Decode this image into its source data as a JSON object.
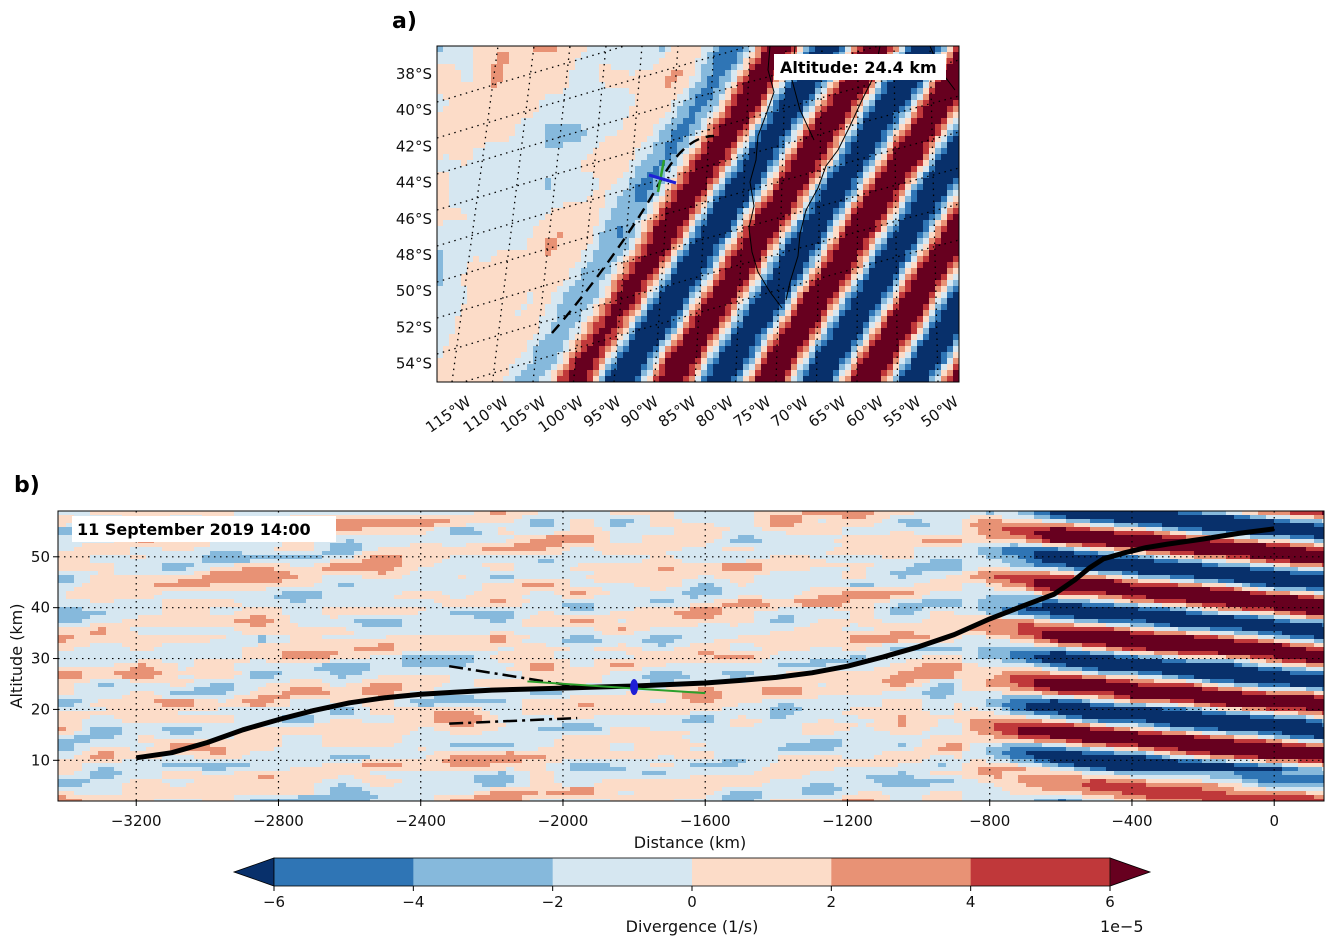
{
  "panels": {
    "a": {
      "label": "a)"
    },
    "b": {
      "label": "b)"
    }
  },
  "chart_data": [
    {
      "type": "heatmap",
      "panel": "a",
      "annotation": "Altitude: 24.4 km",
      "y_ticks": [
        "38°S",
        "40°S",
        "42°S",
        "44°S",
        "46°S",
        "48°S",
        "50°S",
        "52°S",
        "54°S"
      ],
      "x_ticks": [
        "115°W",
        "110°W",
        "105°W",
        "100°W",
        "95°W",
        "90°W",
        "85°W",
        "80°W",
        "75°W",
        "70°W",
        "65°W",
        "60°W",
        "55°W",
        "50°W"
      ],
      "lat_range": [
        -55,
        -37
      ],
      "lon_range": [
        -120,
        -48
      ],
      "features": [
        "flight track (dashed black)",
        "balloon position marker (blue/green cross) near 44°S 87°W",
        "coastline of South America"
      ],
      "grid": true
    },
    {
      "type": "heatmap",
      "panel": "b",
      "annotation": "11 September 2019 14:00",
      "xlabel": "Distance (km)",
      "ylabel": "Altitude (km)",
      "x_ticks": [
        -3200,
        -2800,
        -2400,
        -2000,
        -1600,
        -1200,
        -800,
        -400,
        0
      ],
      "y_ticks": [
        10,
        20,
        30,
        40,
        50
      ],
      "xlim": [
        -3420,
        140
      ],
      "ylim": [
        2,
        59
      ],
      "grid": true,
      "track": {
        "x": [
          -3200,
          -3100,
          -3000,
          -2900,
          -2800,
          -2700,
          -2600,
          -2500,
          -2400,
          -2300,
          -2200,
          -2100,
          -2000,
          -1900,
          -1800,
          -1700,
          -1600,
          -1500,
          -1400,
          -1300,
          -1200,
          -1100,
          -1000,
          -900,
          -800,
          -700,
          -620,
          -560,
          -520,
          -480,
          -420,
          -360,
          -300,
          -200,
          -100,
          0
        ],
        "y": [
          10.5,
          11.5,
          13.5,
          16,
          18,
          19.8,
          21.3,
          22.3,
          23,
          23.4,
          23.8,
          24,
          24.2,
          24.4,
          24.6,
          24.9,
          25.2,
          25.7,
          26.3,
          27.2,
          28.5,
          30.3,
          32.3,
          34.7,
          37.8,
          40.5,
          42.6,
          45.5,
          47.8,
          49.6,
          50.8,
          51.8,
          52.5,
          53.5,
          54.6,
          55.5
        ]
      },
      "balloon_marker": {
        "x": -1800,
        "y": 24.4
      },
      "green_line": {
        "x": [
          -2100,
          -1600
        ],
        "y": [
          25.5,
          23.2
        ]
      },
      "dashdot_lines": [
        {
          "x": [
            -2320,
            -1960
          ],
          "y": [
            28.5,
            24.5
          ]
        },
        {
          "x": [
            -2320,
            -1960
          ],
          "y": [
            17.2,
            18.3
          ]
        }
      ]
    }
  ],
  "colorbar": {
    "label": "Divergence (1/s)",
    "scale": "1e−5",
    "ticks": [
      "−6",
      "−4",
      "−2",
      "0",
      "2",
      "4",
      "6"
    ],
    "levels": [
      -6,
      -4,
      -2,
      0,
      2,
      4,
      6
    ],
    "colors": [
      "#08306b",
      "#2f75b5",
      "#86b9dc",
      "#d6e7f1",
      "#fcdcc8",
      "#e89275",
      "#c0383a",
      "#67001f"
    ]
  }
}
